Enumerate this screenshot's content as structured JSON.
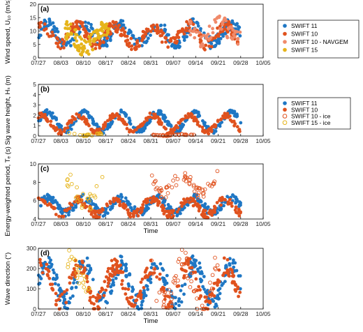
{
  "colors": {
    "s11": "#1f77c4",
    "s10": "#e0521e",
    "navgem": "#f08a6a",
    "s15": "#e6b41a"
  },
  "chart_data": [
    {
      "type": "scatter",
      "panel": "(a)",
      "ylabel": "Wind speed, U₁₀ (m/s)",
      "ylim": [
        0,
        20
      ],
      "yticks": [
        "0",
        "5",
        "10",
        "15",
        "20"
      ],
      "xlim": [
        0,
        70
      ],
      "xticks": [
        "07/27",
        "08/03",
        "08/10",
        "08/17",
        "08/24",
        "08/31",
        "09/07",
        "09/14",
        "09/21",
        "09/28",
        "10/05"
      ],
      "xlabel": "",
      "series": [
        {
          "name": "SWIFT 11",
          "marker": "filled",
          "color": "s11",
          "range": [
            0,
            63
          ],
          "base": 9,
          "amp": 3.5,
          "noise": 2.2,
          "n": 260
        },
        {
          "name": "SWIFT 10",
          "marker": "filled",
          "color": "s10",
          "range": [
            0,
            63
          ],
          "base": 8.5,
          "amp": 3.5,
          "noise": 2.2,
          "n": 260
        },
        {
          "name": "SWIFT 10 - NAVGEM",
          "marker": "filled",
          "color": "navgem",
          "range": [
            47,
            63
          ],
          "base": 10,
          "amp": 3,
          "noise": 3,
          "n": 60
        },
        {
          "name": "SWIFT 15",
          "marker": "filled",
          "color": "s15",
          "range": [
            8,
            22
          ],
          "base": 7,
          "amp": 3,
          "noise": 3.5,
          "n": 90
        }
      ],
      "legend": {
        "placement": "outside-right"
      }
    },
    {
      "type": "scatter",
      "panel": "(b)",
      "ylabel": "Sig wave height, Hₛ (m)",
      "ylim": [
        0,
        5
      ],
      "yticks": [
        "0",
        "1",
        "2",
        "3",
        "4",
        "5"
      ],
      "xlim": [
        0,
        70
      ],
      "xticks": [
        "07/27",
        "08/03",
        "08/10",
        "08/17",
        "08/24",
        "08/31",
        "09/07",
        "09/14",
        "09/21",
        "09/28",
        "10/05"
      ],
      "xlabel": "",
      "series": [
        {
          "name": "SWIFT 11",
          "marker": "filled",
          "color": "s11",
          "range": [
            0,
            63
          ],
          "base": 1.4,
          "amp": 0.9,
          "noise": 0.25,
          "n": 300
        },
        {
          "name": "SWIFT 10",
          "marker": "filled",
          "color": "s10",
          "range": [
            0,
            63
          ],
          "base": 1.2,
          "amp": 0.8,
          "noise": 0.25,
          "n": 260
        },
        {
          "name": "SWIFT 10 - ice",
          "marker": "open",
          "color": "s10",
          "range": [
            35,
            49
          ],
          "base": 0.1,
          "amp": 0.05,
          "noise": 0.05,
          "n": 40
        },
        {
          "name": "SWIFT 15 - ice",
          "marker": "open",
          "color": "s15",
          "range": [
            9,
            20
          ],
          "base": 0.15,
          "amp": 0.1,
          "noise": 0.1,
          "n": 20
        }
      ],
      "legend": {
        "placement": "outside-right"
      }
    },
    {
      "type": "scatter",
      "panel": "(c)",
      "ylabel": "Energy-weighted period, Tₑ (s)",
      "ylim": [
        4,
        10
      ],
      "yticks": [
        "4",
        "6",
        "8",
        "10"
      ],
      "xlim": [
        0,
        70
      ],
      "xticks": [
        "07/27",
        "08/03",
        "08/10",
        "08/17",
        "08/24",
        "08/31",
        "09/07",
        "09/14",
        "09/21",
        "09/28",
        "10/05"
      ],
      "xlabel": "Time",
      "series": [
        {
          "name": "SWIFT 11",
          "marker": "filled",
          "color": "s11",
          "range": [
            0,
            63
          ],
          "base": 5.5,
          "amp": 0.8,
          "noise": 0.4,
          "n": 300
        },
        {
          "name": "SWIFT 10",
          "marker": "filled",
          "color": "s10",
          "range": [
            0,
            63
          ],
          "base": 5.3,
          "amp": 0.8,
          "noise": 0.4,
          "n": 260
        },
        {
          "name": "SWIFT 10 - ice",
          "marker": "open",
          "color": "s10",
          "range": [
            35,
            56
          ],
          "base": 7.8,
          "amp": 1,
          "noise": 0.6,
          "n": 60
        },
        {
          "name": "SWIFT 15 - ice",
          "marker": "open",
          "color": "s15",
          "range": [
            9,
            20
          ],
          "base": 7,
          "amp": 1.5,
          "noise": 1.2,
          "n": 25
        }
      ]
    },
    {
      "type": "scatter",
      "panel": "(d)",
      "ylabel": "Wave direction (°)",
      "ylim": [
        0,
        350
      ],
      "yticks": [
        "0",
        "100",
        "200",
        "300"
      ],
      "xlim": [
        0,
        70
      ],
      "xticks": [
        "07/27",
        "08/03",
        "08/10",
        "08/17",
        "08/24",
        "08/31",
        "09/07",
        "09/14",
        "09/21",
        "09/28",
        "10/05"
      ],
      "xlabel": "Time",
      "series": [
        {
          "name": "SWIFT 11",
          "marker": "filled",
          "color": "s11",
          "range": [
            0,
            63
          ],
          "base": 150,
          "amp": 110,
          "noise": 50,
          "n": 300
        },
        {
          "name": "SWIFT 10",
          "marker": "filled",
          "color": "s10",
          "range": [
            0,
            63
          ],
          "base": 140,
          "amp": 110,
          "noise": 50,
          "n": 260
        },
        {
          "name": "SWIFT 10 - ice",
          "marker": "open",
          "color": "s10",
          "range": [
            35,
            56
          ],
          "base": 150,
          "amp": 120,
          "noise": 80,
          "n": 60
        },
        {
          "name": "SWIFT 15 - ice",
          "marker": "open",
          "color": "s15",
          "range": [
            9,
            16
          ],
          "base": 220,
          "amp": 80,
          "noise": 60,
          "n": 20
        }
      ]
    }
  ]
}
